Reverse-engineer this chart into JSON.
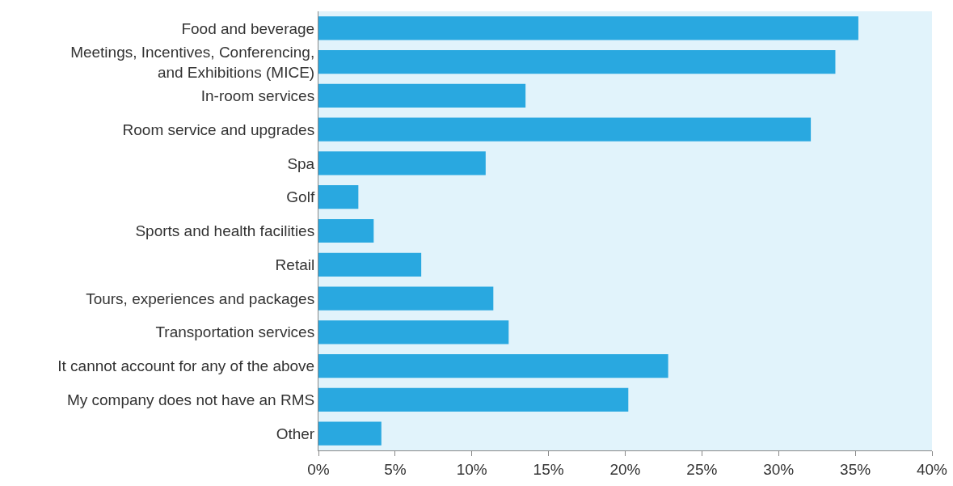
{
  "chart_data": {
    "type": "bar",
    "orientation": "horizontal",
    "categories": [
      "Food and beverage",
      "Meetings, Incentives, Conferencing,\nand Exhibitions (MICE)",
      "In-room services",
      "Room service and upgrades",
      "Spa",
      "Golf",
      "Sports and health facilities",
      "Retail",
      "Tours, experiences and packages",
      "Transportation services",
      "It cannot account for any of the above",
      "My company does not have an RMS",
      "Other"
    ],
    "values": [
      35.2,
      33.7,
      13.5,
      32.1,
      10.9,
      2.6,
      3.6,
      6.7,
      11.4,
      12.4,
      22.8,
      20.2,
      4.1
    ],
    "color": "#29a8e0",
    "xlim": [
      0,
      40
    ],
    "xticks": [
      {
        "value": 0,
        "label": "0%"
      },
      {
        "value": 5,
        "label": "5%"
      },
      {
        "value": 10,
        "label": "10%"
      },
      {
        "value": 15,
        "label": "15%"
      },
      {
        "value": 20,
        "label": "20%"
      },
      {
        "value": 25,
        "label": "25%"
      },
      {
        "value": 30,
        "label": "30%"
      },
      {
        "value": 35,
        "label": "35%"
      },
      {
        "value": 40,
        "label": "40%"
      }
    ],
    "grid": false,
    "legend": false
  }
}
